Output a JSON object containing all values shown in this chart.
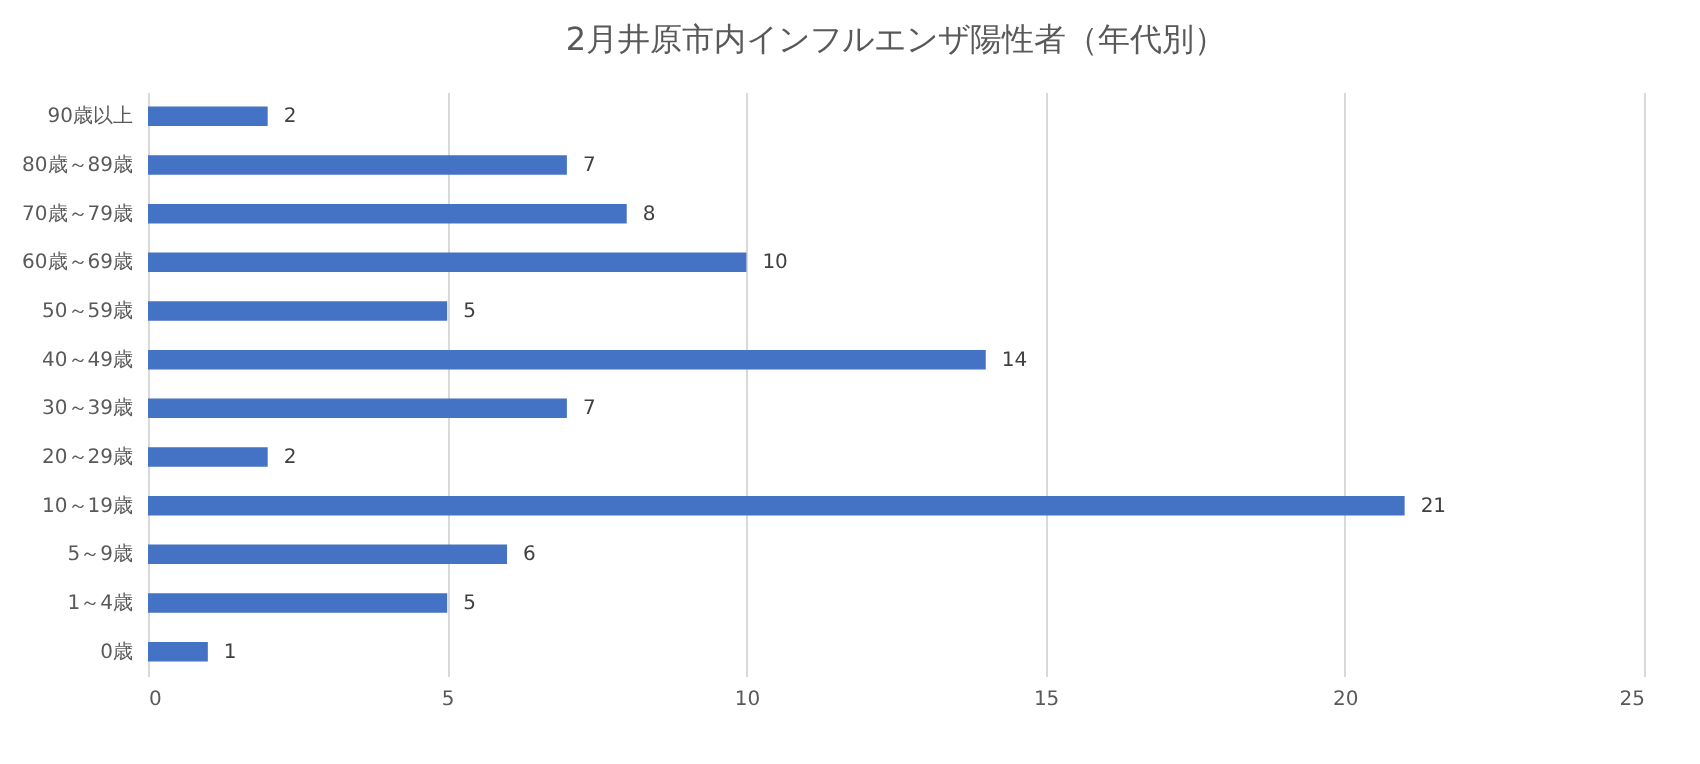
{
  "chart_data": {
    "type": "bar",
    "orientation": "horizontal",
    "title": "2月井原市内インフルエンザ陽性者（年代別）",
    "categories": [
      "90歳以上",
      "80歳～89歳",
      "70歳～79歳",
      "60歳～69歳",
      "50～59歳",
      "40～49歳",
      "30～39歳",
      "20～29歳",
      "10～19歳",
      "5～9歳",
      "1～4歳",
      "0歳"
    ],
    "values": [
      2,
      7,
      8,
      10,
      5,
      14,
      7,
      2,
      21,
      6,
      5,
      1
    ],
    "color": "#4472c4",
    "xlim": [
      0,
      25
    ],
    "xticks": [
      0,
      5,
      10,
      15,
      20,
      25
    ],
    "grid": "x",
    "data_labels": true
  }
}
